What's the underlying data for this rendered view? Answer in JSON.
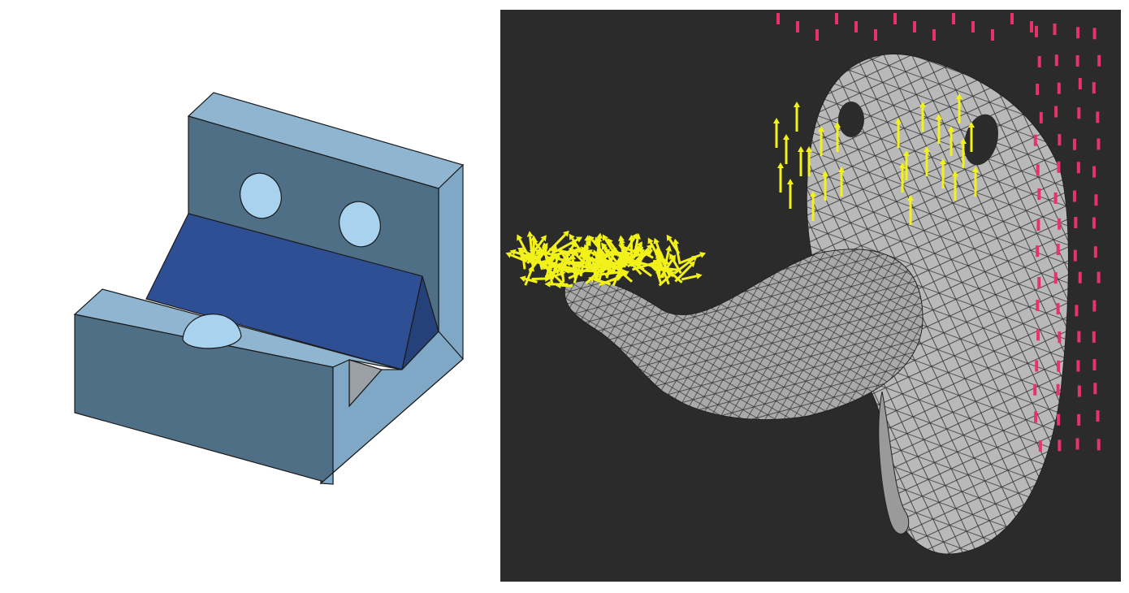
{
  "figure": {
    "left_panel": {
      "subject": "cad-bracket-model",
      "colors": {
        "face_light": "#8fb5d1",
        "face_mid": "#7fa8c6",
        "face_dark": "#4f6f86",
        "slope_face": "#2f4f94",
        "hole_fill": "#a9d2ee",
        "slot_shadow": "#9aa0a4",
        "edge": "#1a1a1a"
      }
    },
    "right_panel": {
      "subject": "fea-mesh-with-load-arrows",
      "colors": {
        "background": "#2b2b2b",
        "mesh_surface": "#b9b9b9",
        "mesh_edges": "#333333",
        "load_arrows": "#f2f21a",
        "constraint_markers": "#e8336a"
      }
    }
  }
}
